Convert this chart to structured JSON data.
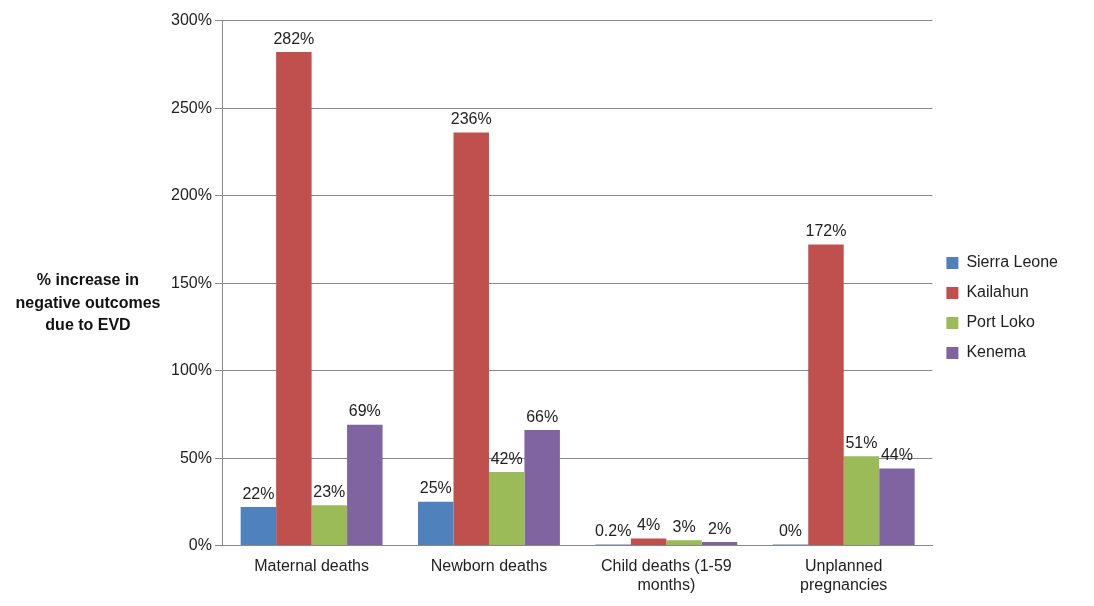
{
  "chart_data": {
    "type": "bar",
    "ylabel": "% increase in negative outcomes due to EVD",
    "categories": [
      "Maternal deaths",
      "Newborn deaths",
      "Child deaths (1-59 months)",
      "Unplanned pregnancies"
    ],
    "series": [
      {
        "name": "Sierra Leone",
        "color": "#4f81bd",
        "values": [
          22,
          25,
          0.2,
          0
        ],
        "value_labels": [
          "22%",
          "25%",
          "0.2%",
          "0%"
        ]
      },
      {
        "name": "Kailahun",
        "color": "#c0504d",
        "values": [
          282,
          236,
          4,
          172
        ],
        "value_labels": [
          "282%",
          "236%",
          "4%",
          "172%"
        ]
      },
      {
        "name": "Port Loko",
        "color": "#9bbb59",
        "values": [
          23,
          42,
          3,
          51
        ],
        "value_labels": [
          "23%",
          "42%",
          "3%",
          "51%"
        ]
      },
      {
        "name": "Kenema",
        "color": "#8064a2",
        "values": [
          69,
          66,
          2,
          44
        ],
        "value_labels": [
          "69%",
          "66%",
          "2%",
          "44%"
        ]
      }
    ],
    "ylim": [
      0,
      300
    ],
    "yticks": [
      {
        "value": 0,
        "label": "0%"
      },
      {
        "value": 50,
        "label": "50%"
      },
      {
        "value": 100,
        "label": "100%"
      },
      {
        "value": 150,
        "label": "150%"
      },
      {
        "value": 200,
        "label": "200%"
      },
      {
        "value": 250,
        "label": "250%"
      },
      {
        "value": 300,
        "label": "300%"
      }
    ],
    "grid": "y",
    "legend": "right"
  }
}
